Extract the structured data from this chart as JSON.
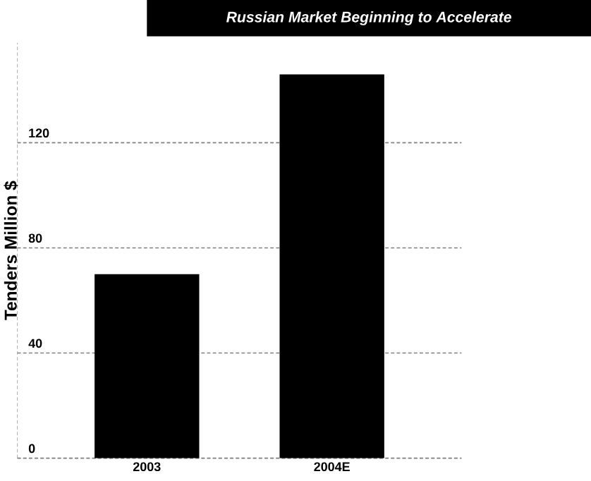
{
  "chart_data": {
    "type": "bar",
    "title": "Russian Market Beginning to Accelerate",
    "ylabel": "Tenders Million $",
    "categories": [
      "2003",
      "2004E"
    ],
    "values": [
      70,
      146
    ],
    "color": "#000000",
    "ylim": [
      0,
      158
    ],
    "yticks": [
      0,
      40,
      80,
      120
    ],
    "grid": "y"
  }
}
